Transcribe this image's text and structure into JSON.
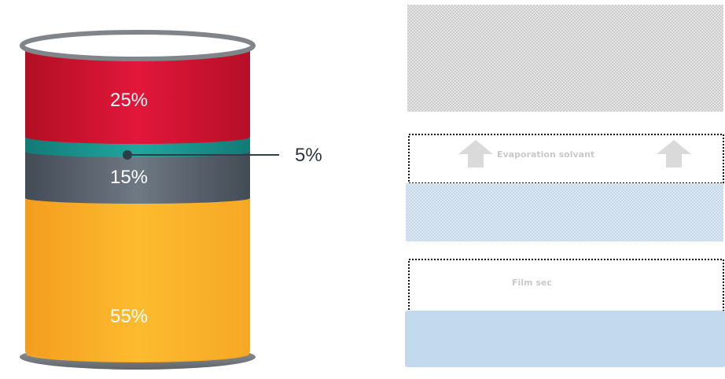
{
  "barrel": {
    "segments": [
      {
        "key": "top",
        "label": "25%",
        "value": 25,
        "color": "#d3122b"
      },
      {
        "key": "thin",
        "label": "5%",
        "value": 5,
        "color": "#1a9a93"
      },
      {
        "key": "middle",
        "label": "15%",
        "value": 15,
        "color": "#5b6570"
      },
      {
        "key": "bottom",
        "label": "55%",
        "value": 55,
        "color": "#fbb32a"
      }
    ],
    "callout_label": "5%",
    "rim_color": "#7a7e82"
  },
  "process": {
    "evaporation_label": "Evaporation solvant",
    "film_label": "Film sec",
    "colors": {
      "dotted_gray": "#cfcfcf",
      "dotted_blue": "#c8dcec",
      "solid_blue": "#c3daee",
      "arrow": "#dadada",
      "label": "#c9c9c9"
    }
  }
}
